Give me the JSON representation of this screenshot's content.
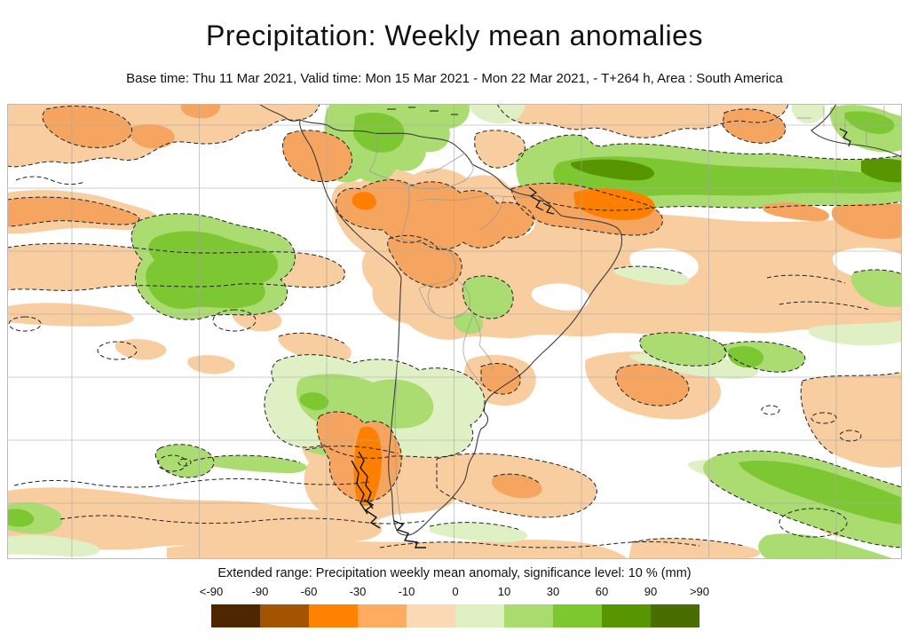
{
  "header": {
    "title": "Precipitation: Weekly mean anomalies",
    "subtitle": "Base time: Thu 11 Mar 2021, Valid time: Mon 15 Mar 2021 - Mon 22 Mar 2021, - T+264 h, Area : South America"
  },
  "legend": {
    "title": "Extended range: Precipitation weekly mean anomaly, significance level: 10 % (mm)",
    "ticks": [
      "<-90",
      "-90",
      "-60",
      "-30",
      "-10",
      "0",
      "10",
      "30",
      "60",
      "90",
      ">90"
    ],
    "colors": [
      "#4e2700",
      "#a35400",
      "#ff8300",
      "#ffac60",
      "#fbd9b5",
      "#dff0c2",
      "#a9dc6e",
      "#7cc82e",
      "#579600",
      "#4a6d00"
    ]
  },
  "map": {
    "dry_anomaly_colors": [
      "#f8cda0",
      "#f5a55f",
      "#ff8000"
    ],
    "wet_anomaly_colors": [
      "#dff0c5",
      "#abdc72",
      "#7dc832",
      "#579600"
    ],
    "grid_color": "#a8a8a8",
    "coastline_color": "#3c3c3c"
  }
}
